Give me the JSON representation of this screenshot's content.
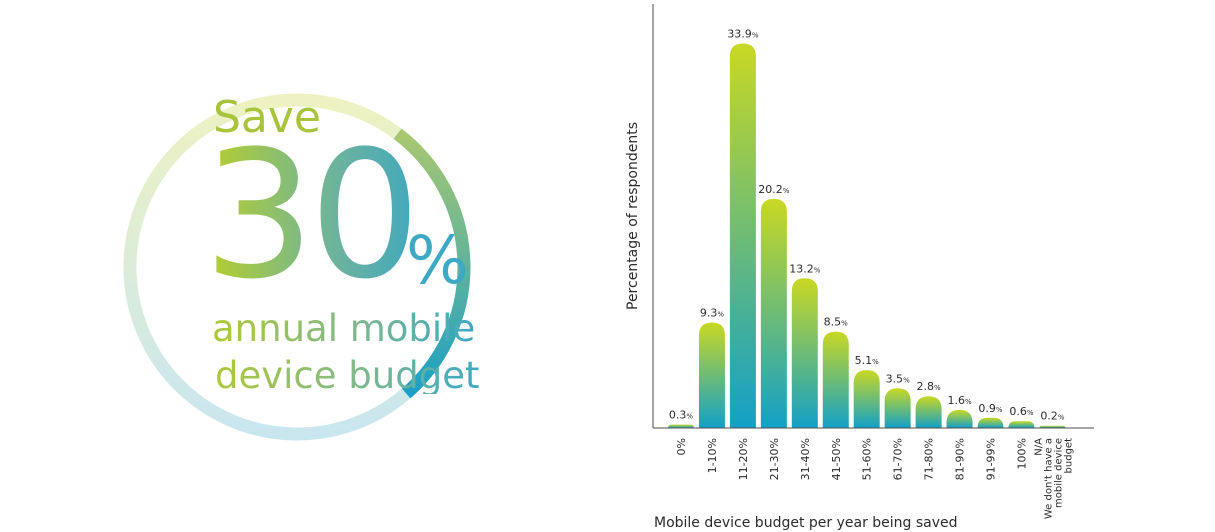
{
  "callout": {
    "save_label": "Save",
    "value": "30",
    "unit": "%",
    "line1": "annual mobile",
    "line2": "device budget"
  },
  "ring": {
    "highlight_fraction": 0.3,
    "colors": {
      "pale_start": "#eef2c2",
      "pale_end": "#c9e6ef",
      "accent_start": "#a9c770",
      "accent_end": "#1aa0c6"
    }
  },
  "chart_data": {
    "type": "bar",
    "xlabel": "Mobile device budget per year being saved",
    "ylabel": "Percentage of respondents",
    "ylim": [
      0,
      35
    ],
    "grid": false,
    "legend": "none",
    "value_unit": "%",
    "categories": [
      [
        "0%"
      ],
      [
        "1-10%"
      ],
      [
        "11-20%"
      ],
      [
        "21-30%"
      ],
      [
        "31-40%"
      ],
      [
        "41-50%"
      ],
      [
        "51-60%"
      ],
      [
        "61-70%"
      ],
      [
        "71-80%"
      ],
      [
        "81-90%"
      ],
      [
        "91-99%"
      ],
      [
        "100%"
      ],
      [
        "N/A",
        "We don't have a",
        "mobile device",
        "budget"
      ]
    ],
    "values": [
      0.3,
      9.3,
      33.9,
      20.2,
      13.2,
      8.5,
      5.1,
      3.5,
      2.8,
      1.6,
      0.9,
      0.6,
      0.2
    ],
    "value_labels": [
      "0.3",
      "9.3",
      "33.9",
      "20.2",
      "13.2",
      "8.5",
      "5.1",
      "3.5",
      "2.8",
      "1.6",
      "0.9",
      "0.6",
      "0.2"
    ],
    "colors": {
      "bar_top": "#c9d823",
      "bar_bottom": "#12a0c8",
      "axis": "#4d4d4d",
      "text": "#2b2b2b"
    }
  }
}
